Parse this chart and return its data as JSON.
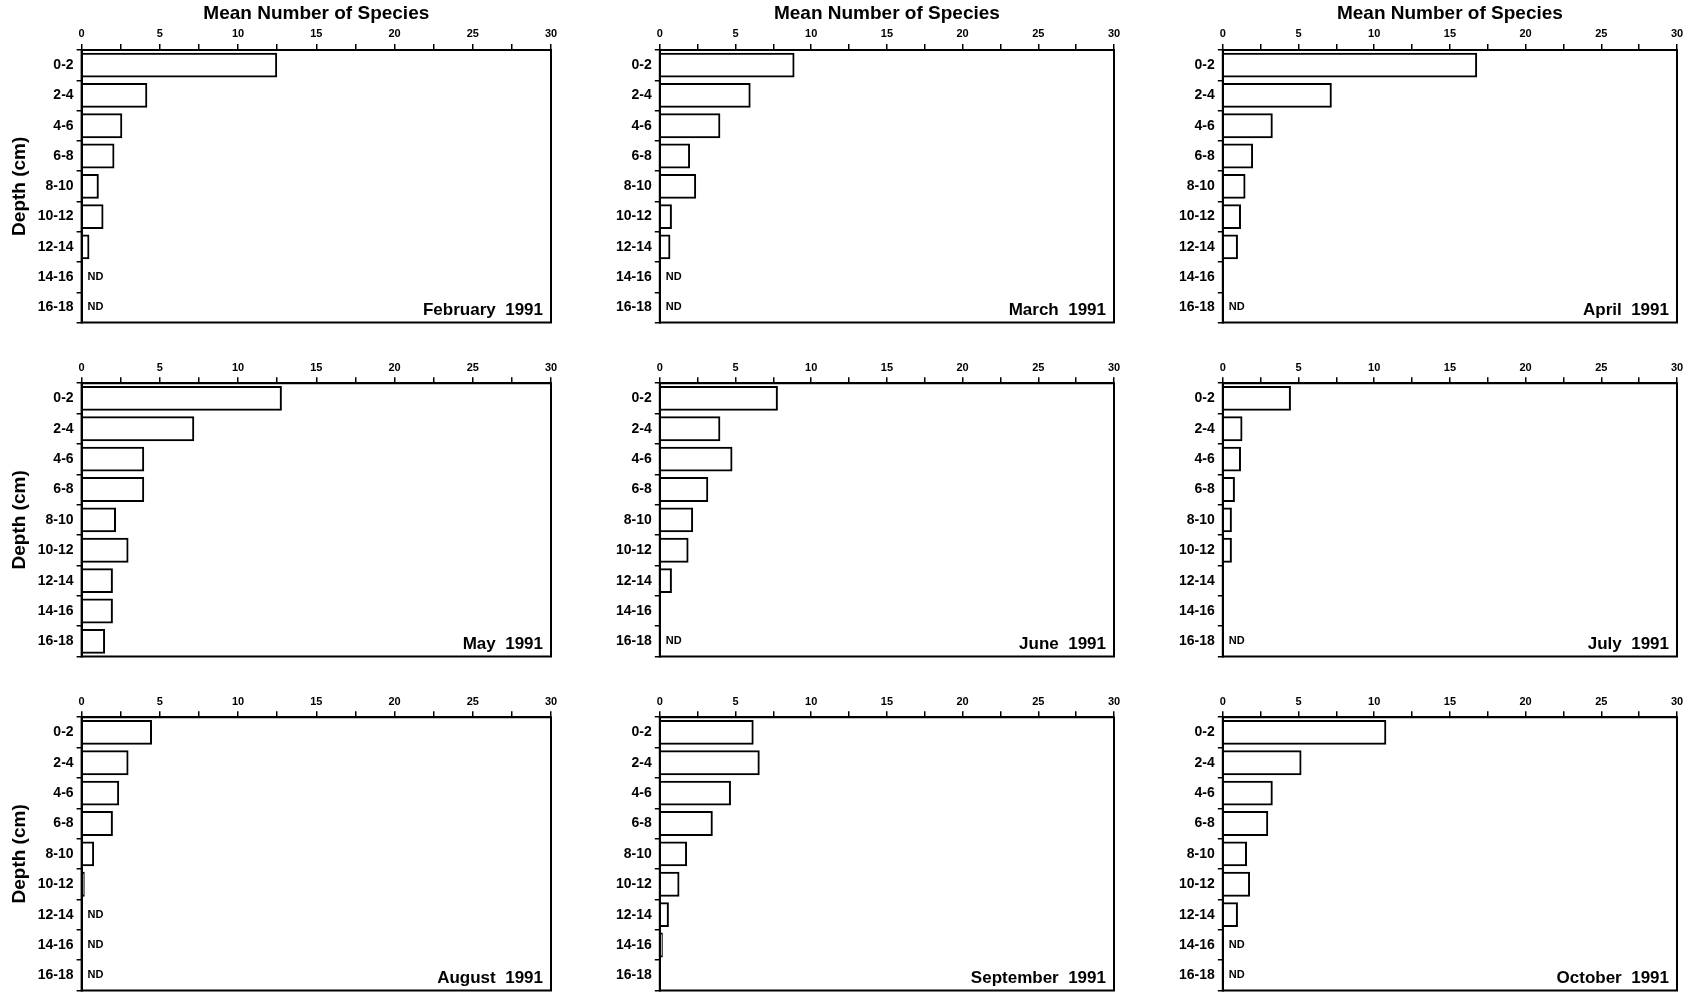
{
  "chart_data": [
    {
      "type": "bar",
      "orientation": "horizontal",
      "xlabel": "Mean Number of Species",
      "ylabel": "Depth (cm)",
      "categories": [
        "0-2",
        "2-4",
        "4-6",
        "6-8",
        "8-10",
        "10-12",
        "12-14",
        "14-16",
        "16-18"
      ],
      "values": [
        12.5,
        4.2,
        2.6,
        2.1,
        1.1,
        1.4,
        0.5,
        null,
        null
      ],
      "color": "#000000",
      "xlim": [
        0,
        30
      ],
      "xticks": [
        0,
        {
          "value": 2.5,
          "label": null
        },
        5,
        {
          "value": 7.5,
          "label": null
        },
        10,
        {
          "value": 12.5,
          "label": null
        },
        15,
        {
          "value": 17.5,
          "label": null
        },
        20,
        {
          "value": 22.5,
          "label": null
        },
        25,
        {
          "value": 27.5,
          "label": null
        },
        30
      ],
      "grid": false,
      "legend": false,
      "annotations": [
        "February  1991",
        "ND",
        "ND"
      ]
    },
    {
      "type": "bar",
      "orientation": "horizontal",
      "xlabel": "Mean Number of Species",
      "categories": [
        "0-2",
        "2-4",
        "4-6",
        "6-8",
        "8-10",
        "10-12",
        "12-14",
        "14-16",
        "16-18"
      ],
      "values": [
        8.9,
        6.0,
        4.0,
        2.0,
        2.4,
        0.8,
        0.7,
        null,
        null
      ],
      "color": "#000000",
      "xlim": [
        0,
        30
      ],
      "xticks": [
        0,
        {
          "value": 2.5,
          "label": null
        },
        5,
        {
          "value": 7.5,
          "label": null
        },
        10,
        {
          "value": 12.5,
          "label": null
        },
        15,
        {
          "value": 17.5,
          "label": null
        },
        20,
        {
          "value": 22.5,
          "label": null
        },
        25,
        {
          "value": 27.5,
          "label": null
        },
        30
      ],
      "grid": false,
      "legend": false,
      "annotations": [
        "March  1991",
        "ND",
        "ND"
      ]
    },
    {
      "type": "bar",
      "orientation": "horizontal",
      "xlabel": "Mean Number of Species",
      "categories": [
        "0-2",
        "2-4",
        "4-6",
        "6-8",
        "8-10",
        "10-12",
        "12-14",
        "14-16",
        "16-18"
      ],
      "values": [
        16.8,
        7.2,
        3.3,
        2.0,
        1.5,
        1.2,
        1.0,
        0,
        null
      ],
      "color": "#000000",
      "xlim": [
        0,
        30
      ],
      "xticks": [
        0,
        {
          "value": 2.5,
          "label": null
        },
        5,
        {
          "value": 7.5,
          "label": null
        },
        10,
        {
          "value": 12.5,
          "label": null
        },
        15,
        {
          "value": 17.5,
          "label": null
        },
        20,
        {
          "value": 22.5,
          "label": null
        },
        25,
        {
          "value": 27.5,
          "label": null
        },
        30
      ],
      "grid": false,
      "legend": false,
      "annotations": [
        "April  1991",
        "ND"
      ]
    },
    {
      "type": "bar",
      "orientation": "horizontal",
      "ylabel": "Depth (cm)",
      "categories": [
        "0-2",
        "2-4",
        "4-6",
        "6-8",
        "8-10",
        "10-12",
        "12-14",
        "14-16",
        "16-18"
      ],
      "values": [
        12.8,
        7.2,
        4.0,
        4.0,
        2.2,
        3.0,
        2.0,
        2.0,
        1.5
      ],
      "color": "#000000",
      "xlim": [
        0,
        30
      ],
      "xticks": [
        0,
        {
          "value": 2.5,
          "label": null
        },
        5,
        {
          "value": 7.5,
          "label": null
        },
        10,
        {
          "value": 12.5,
          "label": null
        },
        15,
        {
          "value": 17.5,
          "label": null
        },
        20,
        {
          "value": 22.5,
          "label": null
        },
        25,
        {
          "value": 27.5,
          "label": null
        },
        30
      ],
      "grid": false,
      "legend": false,
      "annotations": [
        "May  1991"
      ]
    },
    {
      "type": "bar",
      "orientation": "horizontal",
      "categories": [
        "0-2",
        "2-4",
        "4-6",
        "6-8",
        "8-10",
        "10-12",
        "12-14",
        "14-16",
        "16-18"
      ],
      "values": [
        7.8,
        4.0,
        4.8,
        3.2,
        2.2,
        1.9,
        0.8,
        0,
        null
      ],
      "color": "#000000",
      "xlim": [
        0,
        30
      ],
      "xticks": [
        0,
        {
          "value": 2.5,
          "label": null
        },
        5,
        {
          "value": 7.5,
          "label": null
        },
        10,
        {
          "value": 12.5,
          "label": null
        },
        15,
        {
          "value": 17.5,
          "label": null
        },
        20,
        {
          "value": 22.5,
          "label": null
        },
        25,
        {
          "value": 27.5,
          "label": null
        },
        30
      ],
      "grid": false,
      "legend": false,
      "annotations": [
        "June  1991",
        "ND"
      ]
    },
    {
      "type": "bar",
      "orientation": "horizontal",
      "categories": [
        "0-2",
        "2-4",
        "4-6",
        "6-8",
        "8-10",
        "10-12",
        "12-14",
        "14-16",
        "16-18"
      ],
      "values": [
        4.5,
        1.3,
        1.2,
        0.8,
        0.6,
        0.6,
        0,
        0,
        null
      ],
      "color": "#000000",
      "xlim": [
        0,
        30
      ],
      "xticks": [
        0,
        {
          "value": 2.5,
          "label": null
        },
        5,
        {
          "value": 7.5,
          "label": null
        },
        10,
        {
          "value": 12.5,
          "label": null
        },
        15,
        {
          "value": 17.5,
          "label": null
        },
        20,
        {
          "value": 22.5,
          "label": null
        },
        25,
        {
          "value": 27.5,
          "label": null
        },
        30
      ],
      "grid": false,
      "legend": false,
      "annotations": [
        "July  1991",
        "ND"
      ]
    },
    {
      "type": "bar",
      "orientation": "horizontal",
      "ylabel": "Depth (cm)",
      "categories": [
        "0-2",
        "2-4",
        "4-6",
        "6-8",
        "8-10",
        "10-12",
        "12-14",
        "14-16",
        "16-18"
      ],
      "values": [
        4.5,
        3.0,
        2.4,
        2.0,
        0.8,
        0.2,
        null,
        null,
        null
      ],
      "color": "#000000",
      "xlim": [
        0,
        30
      ],
      "xticks": [
        0,
        {
          "value": 2.5,
          "label": null
        },
        5,
        {
          "value": 7.5,
          "label": null
        },
        10,
        {
          "value": 12.5,
          "label": null
        },
        15,
        {
          "value": 17.5,
          "label": null
        },
        20,
        {
          "value": 22.5,
          "label": null
        },
        25,
        {
          "value": 27.5,
          "label": null
        },
        30
      ],
      "grid": false,
      "legend": false,
      "annotations": [
        "August  1991",
        "ND",
        "ND",
        "ND"
      ]
    },
    {
      "type": "bar",
      "orientation": "horizontal",
      "categories": [
        "0-2",
        "2-4",
        "4-6",
        "6-8",
        "8-10",
        "10-12",
        "12-14",
        "14-16",
        "16-18"
      ],
      "values": [
        6.2,
        6.6,
        4.7,
        3.5,
        1.8,
        1.3,
        0.6,
        0.2,
        0
      ],
      "color": "#000000",
      "xlim": [
        0,
        30
      ],
      "xticks": [
        0,
        {
          "value": 2.5,
          "label": null
        },
        5,
        {
          "value": 7.5,
          "label": null
        },
        10,
        {
          "value": 12.5,
          "label": null
        },
        15,
        {
          "value": 17.5,
          "label": null
        },
        20,
        {
          "value": 22.5,
          "label": null
        },
        25,
        {
          "value": 27.5,
          "label": null
        },
        30
      ],
      "grid": false,
      "legend": false,
      "annotations": [
        "September  1991"
      ]
    },
    {
      "type": "bar",
      "orientation": "horizontal",
      "categories": [
        "0-2",
        "2-4",
        "4-6",
        "6-8",
        "8-10",
        "10-12",
        "12-14",
        "14-16",
        "16-18"
      ],
      "values": [
        10.8,
        5.2,
        3.3,
        3.0,
        1.6,
        1.8,
        1.0,
        null,
        null
      ],
      "color": "#000000",
      "xlim": [
        0,
        30
      ],
      "xticks": [
        0,
        {
          "value": 2.5,
          "label": null
        },
        5,
        {
          "value": 7.5,
          "label": null
        },
        10,
        {
          "value": 12.5,
          "label": null
        },
        15,
        {
          "value": 17.5,
          "label": null
        },
        20,
        {
          "value": 22.5,
          "label": null
        },
        25,
        {
          "value": 27.5,
          "label": null
        },
        30
      ],
      "grid": false,
      "legend": false,
      "annotations": [
        "October  1991",
        "ND",
        "ND"
      ]
    }
  ]
}
